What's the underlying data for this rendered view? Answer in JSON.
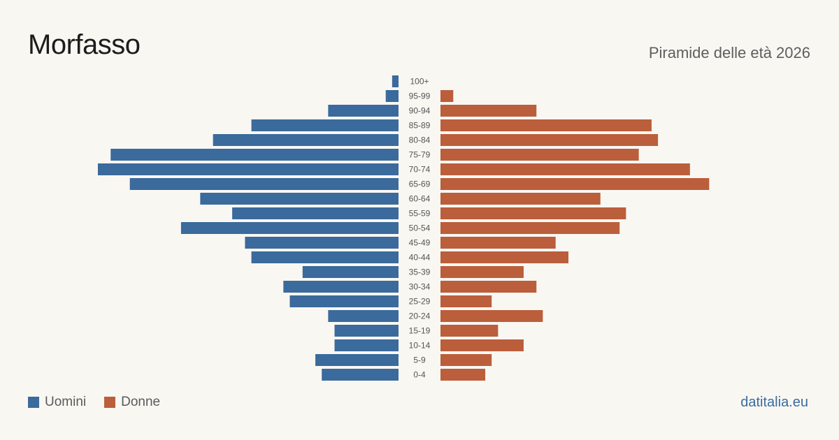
{
  "header": {
    "title": "Morfasso",
    "subtitle": "Piramide delle età 2026"
  },
  "footer": {
    "source": "datitalia.eu"
  },
  "colors": {
    "men": "#3b6a9c",
    "women": "#bb5e3c",
    "background": "#f9f7f2"
  },
  "chart_data": {
    "type": "bar",
    "orientation": "horizontal-pyramid",
    "categories": [
      "100+",
      "95-99",
      "90-94",
      "85-89",
      "80-84",
      "75-79",
      "70-74",
      "65-69",
      "60-64",
      "55-59",
      "50-54",
      "45-49",
      "40-44",
      "35-39",
      "30-34",
      "25-29",
      "20-24",
      "15-19",
      "10-14",
      "5-9",
      "0-4"
    ],
    "series": [
      {
        "name": "Uomini",
        "values": [
          1,
          2,
          11,
          23,
          29,
          45,
          47,
          42,
          31,
          26,
          34,
          24,
          23,
          15,
          18,
          17,
          11,
          10,
          10,
          13,
          12
        ]
      },
      {
        "name": "Donne",
        "values": [
          0,
          2,
          15,
          33,
          34,
          31,
          39,
          42,
          25,
          29,
          28,
          18,
          20,
          13,
          15,
          8,
          16,
          9,
          13,
          8,
          7
        ]
      }
    ],
    "legend_position": "bottom-left",
    "grid": false
  }
}
